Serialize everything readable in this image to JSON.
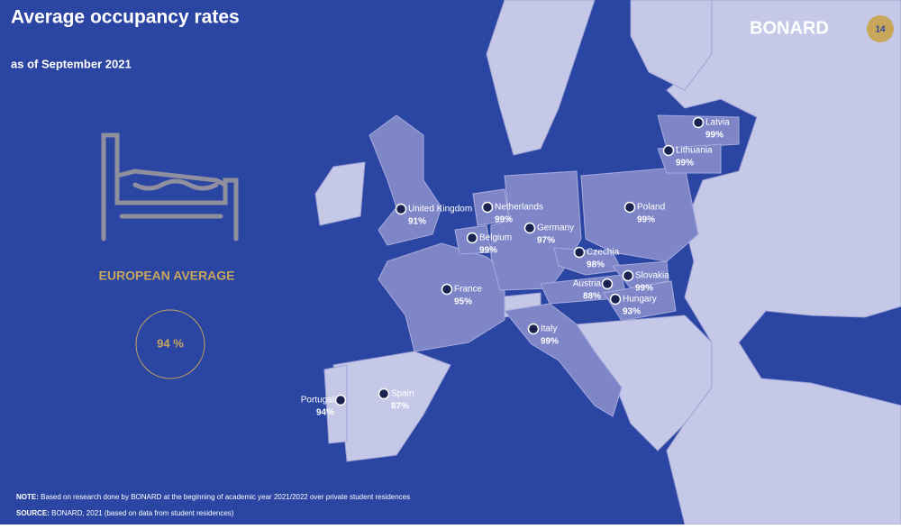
{
  "header": {
    "title": "Average occupancy rates",
    "subtitle": "as of September 2021",
    "brand": "BONARD",
    "page_number": "14"
  },
  "summary": {
    "label": "EUROPEAN AVERAGE",
    "value": "94 %"
  },
  "countries": [
    {
      "name": "United Kingdom",
      "value": "91%"
    },
    {
      "name": "Netherlands",
      "value": "99%"
    },
    {
      "name": "Germany",
      "value": "97%"
    },
    {
      "name": "Belgium",
      "value": "99%"
    },
    {
      "name": "Czechia",
      "value": "98%"
    },
    {
      "name": "Poland",
      "value": "99%"
    },
    {
      "name": "Latvia",
      "value": "99%"
    },
    {
      "name": "Lithuania",
      "value": "99%"
    },
    {
      "name": "France",
      "value": "95%"
    },
    {
      "name": "Slovakia",
      "value": "99%"
    },
    {
      "name": "Austria",
      "value": "88%"
    },
    {
      "name": "Hungary",
      "value": "93%"
    },
    {
      "name": "Italy",
      "value": "99%"
    },
    {
      "name": "Spain",
      "value": "87%"
    },
    {
      "name": "Portugal",
      "value": "94%"
    }
  ],
  "footer": {
    "note_label": "NOTE:",
    "note_text": "Based on research done by BONARD at the beginning of academic year 2021/2022 over private student residences",
    "source_label": "SOURCE:",
    "source_text": "BONARD, 2021 (based on data from student residences)"
  }
}
